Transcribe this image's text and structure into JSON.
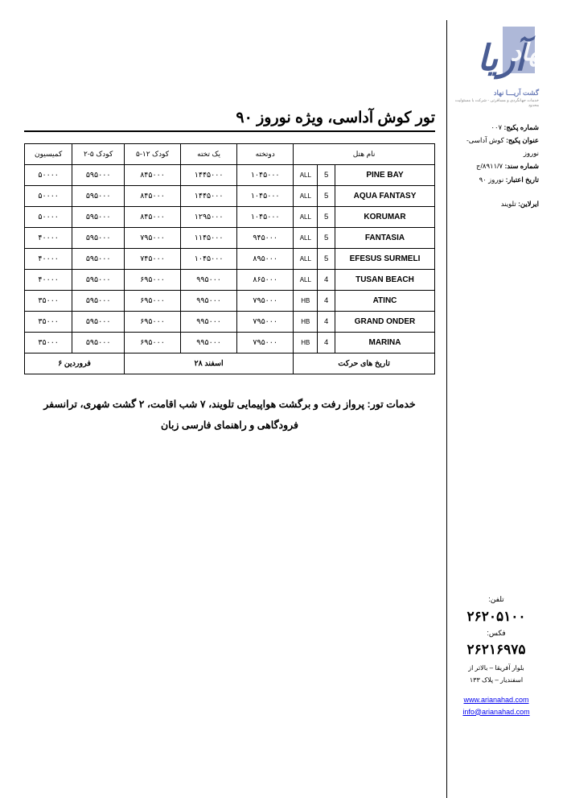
{
  "logo": {
    "main_text": "آریانهاد",
    "sub1": "گشت آریـــا نهاد",
    "sub2": "خدمات جهانگردی و مسافرتی - شرکت با مسئولیت محدود",
    "bar_color": "#5a6fa8",
    "script_color": "#4a5d94"
  },
  "meta": {
    "pkg_no_lbl": "شماره پکیج:",
    "pkg_no": "۰۰۷",
    "pkg_title_lbl": "عنوان پکیج:",
    "pkg_title": "کوش آداسی-نوروز",
    "doc_no_lbl": "شماره سند:",
    "doc_no": "۸۹۱۱/۷/ج",
    "valid_lbl": "تاریخ اعتبار:",
    "valid": "نوروز ۹۰",
    "airline_lbl": "ایرلاین:",
    "airline": "تلویند"
  },
  "title": "تور کوش آداسی، ویژه نوروز ۹۰",
  "headers": {
    "commission": "کمیسیون",
    "child25": "کودک ۵-۲",
    "child512": "کودک ۱۲-۵",
    "single": "یک تخته",
    "double": "دوتخته",
    "hotel": "نام هتل"
  },
  "rows": [
    {
      "hotel": "PINE BAY",
      "star": "5",
      "bb": "ALL",
      "dbl": "۱۰۴۵۰۰۰",
      "sgl": "۱۴۴۵۰۰۰",
      "c512": "۸۴۵۰۰۰",
      "c25": "۵۹۵۰۰۰",
      "com": "۵۰۰۰۰"
    },
    {
      "hotel": "AQUA FANTASY",
      "star": "5",
      "bb": "ALL",
      "dbl": "۱۰۴۵۰۰۰",
      "sgl": "۱۴۴۵۰۰۰",
      "c512": "۸۴۵۰۰۰",
      "c25": "۵۹۵۰۰۰",
      "com": "۵۰۰۰۰"
    },
    {
      "hotel": "KORUMAR",
      "star": "5",
      "bb": "ALL",
      "dbl": "۱۰۴۵۰۰۰",
      "sgl": "۱۲۹۵۰۰۰",
      "c512": "۸۴۵۰۰۰",
      "c25": "۵۹۵۰۰۰",
      "com": "۵۰۰۰۰"
    },
    {
      "hotel": "FANTASIA",
      "star": "5",
      "bb": "ALL",
      "dbl": "۹۴۵۰۰۰",
      "sgl": "۱۱۴۵۰۰۰",
      "c512": "۷۹۵۰۰۰",
      "c25": "۵۹۵۰۰۰",
      "com": "۴۰۰۰۰"
    },
    {
      "hotel": "EFESUS SURMELI",
      "star": "5",
      "bb": "ALL",
      "dbl": "۸۹۵۰۰۰",
      "sgl": "۱۰۴۵۰۰۰",
      "c512": "۷۴۵۰۰۰",
      "c25": "۵۹۵۰۰۰",
      "com": "۴۰۰۰۰"
    },
    {
      "hotel": "TUSAN BEACH",
      "star": "4",
      "bb": "ALL",
      "dbl": "۸۶۵۰۰۰",
      "sgl": "۹۹۵۰۰۰",
      "c512": "۶۹۵۰۰۰",
      "c25": "۵۹۵۰۰۰",
      "com": "۴۰۰۰۰"
    },
    {
      "hotel": "ATINC",
      "star": "4",
      "bb": "HB",
      "dbl": "۷۹۵۰۰۰",
      "sgl": "۹۹۵۰۰۰",
      "c512": "۶۹۵۰۰۰",
      "c25": "۵۹۵۰۰۰",
      "com": "۳۵۰۰۰"
    },
    {
      "hotel": "GRAND ONDER",
      "star": "4",
      "bb": "HB",
      "dbl": "۷۹۵۰۰۰",
      "sgl": "۹۹۵۰۰۰",
      "c512": "۶۹۵۰۰۰",
      "c25": "۵۹۵۰۰۰",
      "com": "۳۵۰۰۰"
    },
    {
      "hotel": "MARINA",
      "star": "4",
      "bb": "HB",
      "dbl": "۷۹۵۰۰۰",
      "sgl": "۹۹۵۰۰۰",
      "c512": "۶۹۵۰۰۰",
      "c25": "۵۹۵۰۰۰",
      "com": "۳۵۰۰۰"
    }
  ],
  "dates": {
    "label": "تاریخ های حرکت",
    "d1": "۲۸ اسفند",
    "d2": "۶ فروردین"
  },
  "services": "خدمات تور: پرواز رفت و برگشت هواپیمایی تلویند، ۷ شب اقامت، ۲ گشت شهری، ترانسفر فرودگاهی و راهنمای فارسی زبان",
  "contact": {
    "tel_lbl": "تلفن:",
    "tel": "۲۶۲۰۵۱۰۰",
    "fax_lbl": "فکس:",
    "fax": "۲۶۲۱۶۹۷۵",
    "addr1": "بلوار آفریقا – بالاتر از",
    "addr2": "اسفندیار – پلاک ۱۳۳",
    "url": "www.arianahad.com",
    "email": "info@arianahad.com"
  }
}
